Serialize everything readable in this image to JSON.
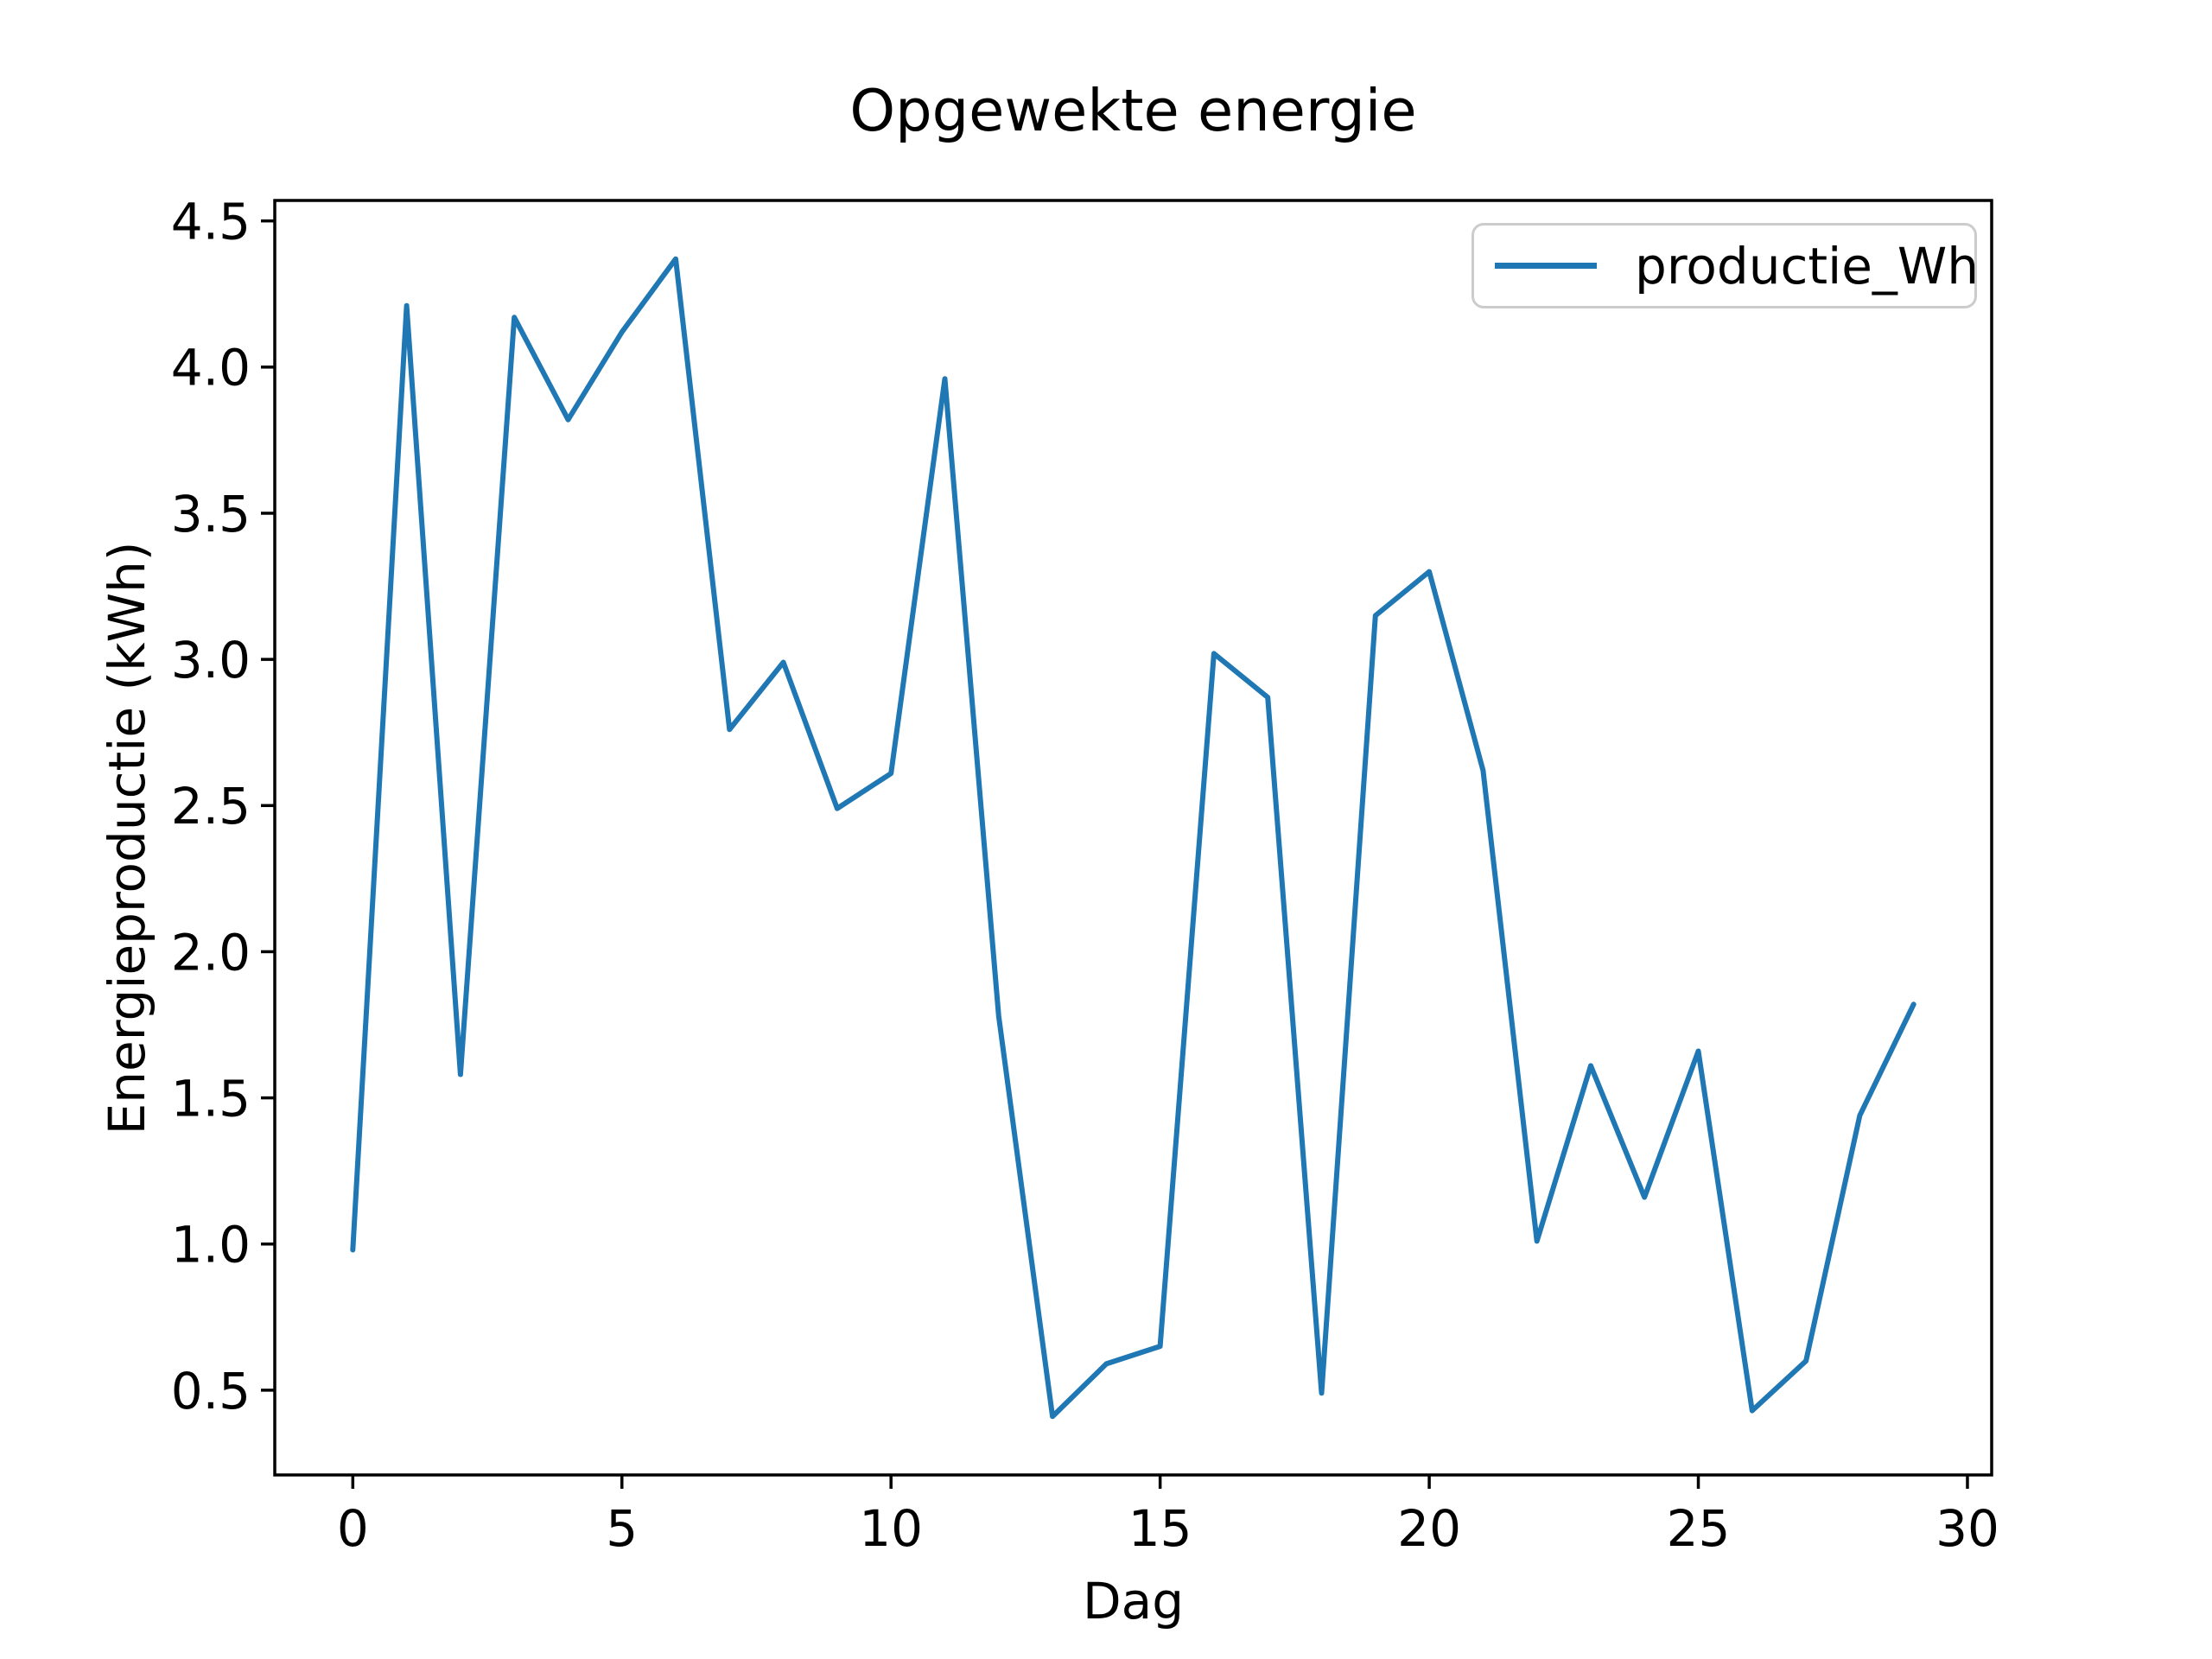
{
  "chart_data": {
    "type": "line",
    "title": "Opgewekte energie",
    "xlabel": "Dag",
    "ylabel": "Energieproductie (kWh)",
    "legend": {
      "position": "upper right",
      "entries": [
        "productie_Wh"
      ]
    },
    "x": [
      0,
      1,
      2,
      3,
      4,
      5,
      6,
      7,
      8,
      9,
      10,
      11,
      12,
      13,
      14,
      15,
      16,
      17,
      18,
      19,
      20,
      21,
      22,
      23,
      24,
      25,
      26,
      27,
      28,
      29
    ],
    "series": [
      {
        "name": "productie_Wh",
        "color": "#1f77b4",
        "values": [
          0.98,
          4.21,
          1.58,
          4.17,
          3.82,
          4.12,
          4.37,
          2.76,
          2.99,
          2.49,
          2.61,
          3.96,
          1.78,
          0.41,
          0.59,
          0.65,
          3.02,
          2.87,
          0.49,
          3.15,
          3.3,
          2.62,
          1.01,
          1.61,
          1.16,
          1.66,
          0.43,
          0.6,
          1.44,
          1.82
        ]
      }
    ],
    "x_ticks": {
      "values": [
        0,
        5,
        10,
        15,
        20,
        25,
        30
      ],
      "labels": [
        "0",
        "5",
        "10",
        "15",
        "20",
        "25",
        "30"
      ]
    },
    "y_ticks": {
      "values": [
        0.5,
        1.0,
        1.5,
        2.0,
        2.5,
        3.0,
        3.5,
        4.0,
        4.5
      ],
      "labels": [
        "0.5",
        "1.0",
        "1.5",
        "2.0",
        "2.5",
        "3.0",
        "3.5",
        "4.0",
        "4.5"
      ]
    },
    "xlim": [
      -1.45,
      30.45
    ],
    "ylim": [
      0.21,
      4.57
    ],
    "grid": false,
    "background": "#ffffff",
    "axes_color": "#000000"
  }
}
